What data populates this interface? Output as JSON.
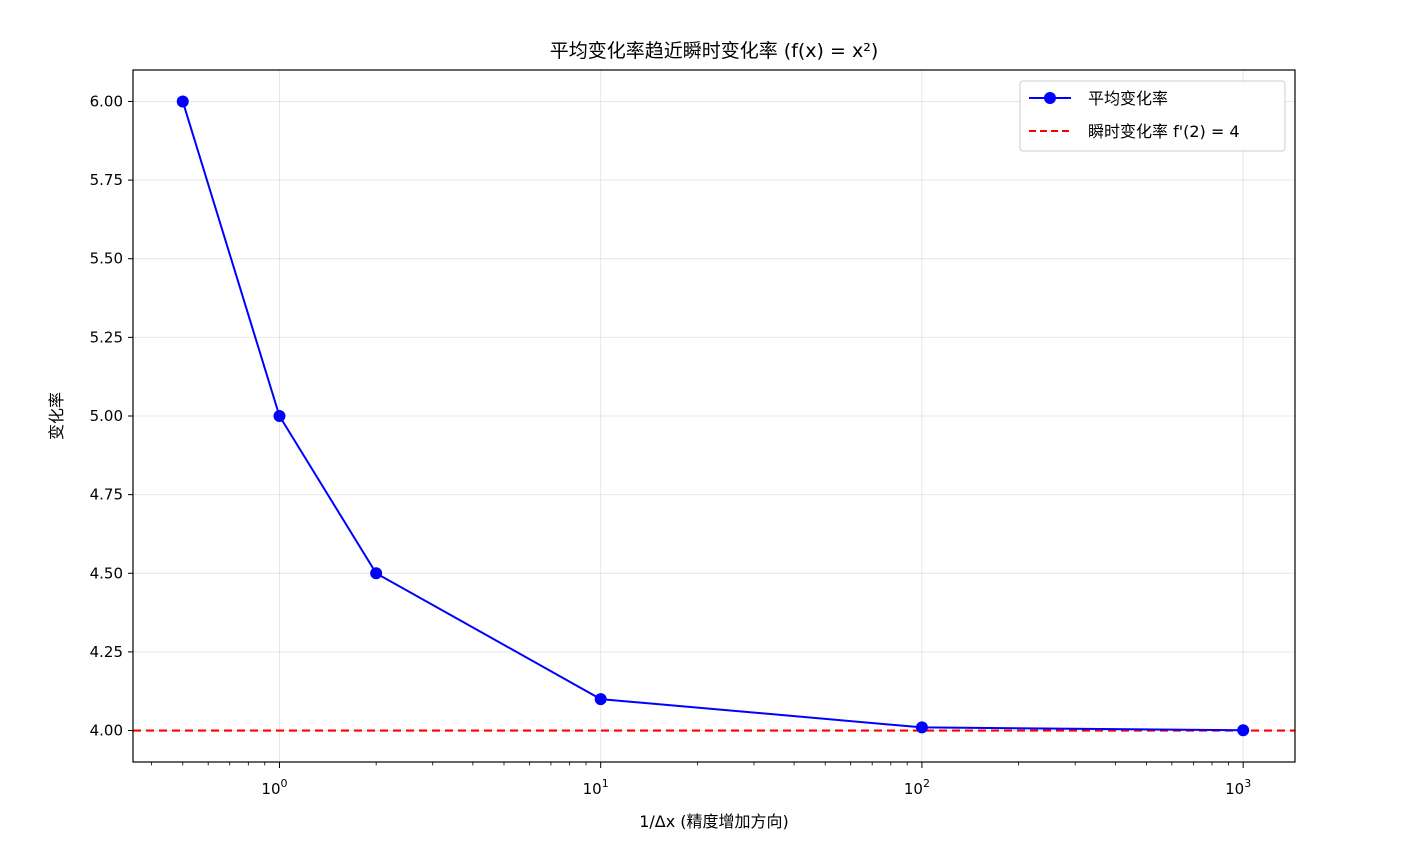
{
  "chart_data": {
    "type": "line",
    "title": "平均变化率趋近瞬时变化率 (f(x) = x²)",
    "xlabel": "1/Δx (精度增加方向)",
    "ylabel": "变化率",
    "xscale": "log",
    "xlim": [
      0.35,
      1450
    ],
    "ylim": [
      3.9,
      6.1
    ],
    "grid": true,
    "legend_position": "top-right",
    "x_ticks": [
      {
        "value": 1,
        "base": "10",
        "exp": "0"
      },
      {
        "value": 10,
        "base": "10",
        "exp": "1"
      },
      {
        "value": 100,
        "base": "10",
        "exp": "2"
      },
      {
        "value": 1000,
        "base": "10",
        "exp": "3"
      }
    ],
    "y_ticks": [
      {
        "value": 4.0,
        "label": "4.00"
      },
      {
        "value": 4.25,
        "label": "4.25"
      },
      {
        "value": 4.5,
        "label": "4.50"
      },
      {
        "value": 4.75,
        "label": "4.75"
      },
      {
        "value": 5.0,
        "label": "5.00"
      },
      {
        "value": 5.25,
        "label": "5.25"
      },
      {
        "value": 5.5,
        "label": "5.50"
      },
      {
        "value": 5.75,
        "label": "5.75"
      },
      {
        "value": 6.0,
        "label": "6.00"
      }
    ],
    "series": [
      {
        "name": "平均变化率",
        "color": "#0000ff",
        "style": "solid-with-markers",
        "x": [
          0.5,
          1,
          2,
          10,
          100,
          1000
        ],
        "y": [
          6.0,
          5.0,
          4.5,
          4.1,
          4.01,
          4.001
        ]
      }
    ],
    "reference_lines": [
      {
        "name": "瞬时变化率 f'(2) = 4",
        "color": "#ff0000",
        "style": "dashed",
        "y": 4.0
      }
    ]
  }
}
